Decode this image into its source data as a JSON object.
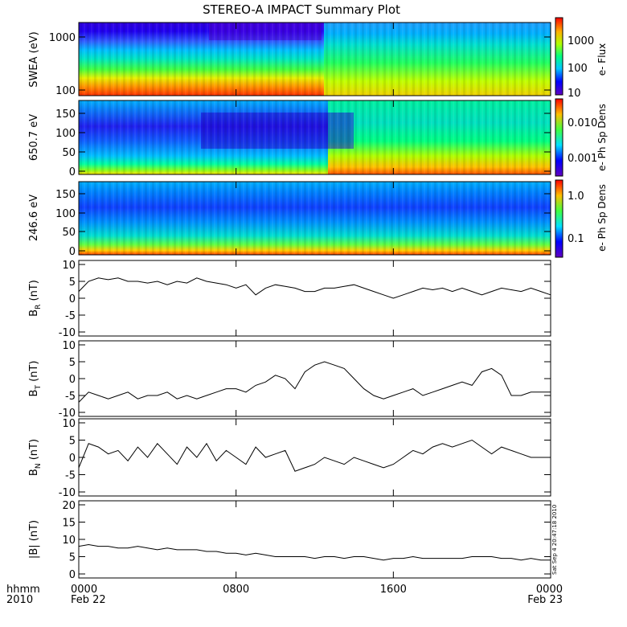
{
  "chart_data": {
    "type": "line",
    "title": "STEREO-A IMPACT Summary Plot",
    "x_axis": {
      "corner_label_top": "hhmm",
      "corner_label_bottom": "2010",
      "range_hours": [
        0,
        24
      ],
      "ticks": [
        {
          "hour": 0,
          "label": "0000",
          "sublabel": "Feb 22"
        },
        {
          "hour": 8,
          "label": "0800",
          "sublabel": ""
        },
        {
          "hour": 16,
          "label": "1600",
          "sublabel": ""
        },
        {
          "hour": 24,
          "label": "0000",
          "sublabel": "Feb 23"
        }
      ]
    },
    "timestamp": "Sat Sep 4 20:47:18 2010",
    "panels": [
      {
        "id": "swea",
        "type": "heatmap",
        "ylabel": "SWEA (eV)",
        "yscale": "log",
        "yticks": [
          "100",
          "1000"
        ],
        "colorbar_label": "e- Flux",
        "colorbar_scale": "log",
        "colorbar_ticks": [
          "10",
          "100",
          "1000"
        ]
      },
      {
        "id": "pad650",
        "type": "heatmap",
        "ylabel": "650.7 eV",
        "ylim": [
          0,
          180
        ],
        "yticks": [
          "0",
          "50",
          "100",
          "150"
        ],
        "colorbar_label": "e- Ph Sp Dens",
        "colorbar_scale": "log",
        "colorbar_ticks": [
          "0.001",
          "0.010"
        ]
      },
      {
        "id": "pad246",
        "type": "heatmap",
        "ylabel": "246.6 eV",
        "ylim": [
          0,
          180
        ],
        "yticks": [
          "0",
          "50",
          "100",
          "150"
        ],
        "colorbar_label": "e- Ph Sp Dens",
        "colorbar_scale": "log",
        "colorbar_ticks": [
          "0.1",
          "1.0"
        ]
      },
      {
        "id": "br",
        "ylabel_main": "B",
        "ylabel_sub": "R",
        "ylabel_unit": " (nT)",
        "ylim": [
          -10,
          10
        ],
        "yticks": [
          "-10",
          "-5",
          "0",
          "5",
          "10"
        ],
        "x": [
          0,
          0.5,
          1,
          1.5,
          2,
          2.5,
          3,
          3.5,
          4,
          4.5,
          5,
          5.5,
          6,
          6.5,
          7,
          7.5,
          8,
          8.5,
          9,
          9.5,
          10,
          10.5,
          11,
          11.5,
          12,
          12.5,
          13,
          13.5,
          14,
          14.5,
          15,
          15.5,
          16,
          16.5,
          17,
          17.5,
          18,
          18.5,
          19,
          19.5,
          20,
          20.5,
          21,
          21.5,
          22,
          22.5,
          23,
          23.5,
          24
        ],
        "y": [
          2,
          5,
          6,
          5.5,
          6,
          5,
          5,
          4.5,
          5,
          4,
          5,
          4.5,
          6,
          5,
          4.5,
          4,
          3,
          4,
          1,
          3,
          4,
          3.5,
          3,
          2,
          2,
          3,
          3,
          3.5,
          4,
          3,
          2,
          1,
          0,
          1,
          2,
          3,
          2.5,
          3,
          2,
          3,
          2,
          1,
          2,
          3,
          2.5,
          2,
          3,
          2,
          1
        ]
      },
      {
        "id": "bt",
        "ylabel_main": "B",
        "ylabel_sub": "T",
        "ylabel_unit": " (nT)",
        "ylim": [
          -10,
          10
        ],
        "yticks": [
          "-10",
          "-5",
          "0",
          "5",
          "10"
        ],
        "x": [
          0,
          0.5,
          1,
          1.5,
          2,
          2.5,
          3,
          3.5,
          4,
          4.5,
          5,
          5.5,
          6,
          6.5,
          7,
          7.5,
          8,
          8.5,
          9,
          9.5,
          10,
          10.5,
          11,
          11.5,
          12,
          12.5,
          13,
          13.5,
          14,
          14.5,
          15,
          15.5,
          16,
          16.5,
          17,
          17.5,
          18,
          18.5,
          19,
          19.5,
          20,
          20.5,
          21,
          21.5,
          22,
          22.5,
          23,
          23.5,
          24
        ],
        "y": [
          -7,
          -4,
          -5,
          -6,
          -5,
          -4,
          -6,
          -5,
          -5,
          -4,
          -6,
          -5,
          -6,
          -5,
          -4,
          -3,
          -3,
          -4,
          -2,
          -1,
          1,
          0,
          -3,
          2,
          4,
          5,
          4,
          3,
          0,
          -3,
          -5,
          -6,
          -5,
          -4,
          -3,
          -5,
          -4,
          -3,
          -2,
          -1,
          -2,
          2,
          3,
          1,
          -5,
          -5,
          -4,
          -4,
          -4
        ]
      },
      {
        "id": "bn",
        "ylabel_main": "B",
        "ylabel_sub": "N",
        "ylabel_unit": " (nT)",
        "ylim": [
          -10,
          10
        ],
        "yticks": [
          "-10",
          "-5",
          "0",
          "5",
          "10"
        ],
        "x": [
          0,
          0.5,
          1,
          1.5,
          2,
          2.5,
          3,
          3.5,
          4,
          4.5,
          5,
          5.5,
          6,
          6.5,
          7,
          7.5,
          8,
          8.5,
          9,
          9.5,
          10,
          10.5,
          11,
          11.5,
          12,
          12.5,
          13,
          13.5,
          14,
          14.5,
          15,
          15.5,
          16,
          16.5,
          17,
          17.5,
          18,
          18.5,
          19,
          19.5,
          20,
          20.5,
          21,
          21.5,
          22,
          22.5,
          23,
          23.5,
          24
        ],
        "y": [
          -3,
          4,
          3,
          1,
          2,
          -1,
          3,
          0,
          4,
          1,
          -2,
          3,
          0,
          4,
          -1,
          2,
          0,
          -2,
          3,
          0,
          1,
          2,
          -4,
          -3,
          -2,
          0,
          -1,
          -2,
          0,
          -1,
          -2,
          -3,
          -2,
          0,
          2,
          1,
          3,
          4,
          3,
          4,
          5,
          3,
          1,
          3,
          2,
          1,
          0,
          0,
          0
        ]
      },
      {
        "id": "bmag",
        "ylabel_main": "|B| (nT)",
        "ylim": [
          0,
          20
        ],
        "yticks": [
          "0",
          "5",
          "10",
          "15",
          "20"
        ],
        "x": [
          0,
          0.5,
          1,
          1.5,
          2,
          2.5,
          3,
          3.5,
          4,
          4.5,
          5,
          5.5,
          6,
          6.5,
          7,
          7.5,
          8,
          8.5,
          9,
          9.5,
          10,
          10.5,
          11,
          11.5,
          12,
          12.5,
          13,
          13.5,
          14,
          14.5,
          15,
          15.5,
          16,
          16.5,
          17,
          17.5,
          18,
          18.5,
          19,
          19.5,
          20,
          20.5,
          21,
          21.5,
          22,
          22.5,
          23,
          23.5,
          24
        ],
        "y": [
          8,
          8.5,
          8,
          8,
          7.5,
          7.5,
          8,
          7.5,
          7,
          7.5,
          7,
          7,
          7,
          6.5,
          6.5,
          6,
          6,
          5.5,
          6,
          5.5,
          5,
          5,
          5,
          5,
          4.5,
          5,
          5,
          4.5,
          5,
          5,
          4.5,
          4,
          4.5,
          4.5,
          5,
          4.5,
          4.5,
          4.5,
          4.5,
          4.5,
          5,
          5,
          5,
          4.5,
          4.5,
          4,
          4.5,
          4,
          4
        ]
      }
    ]
  }
}
